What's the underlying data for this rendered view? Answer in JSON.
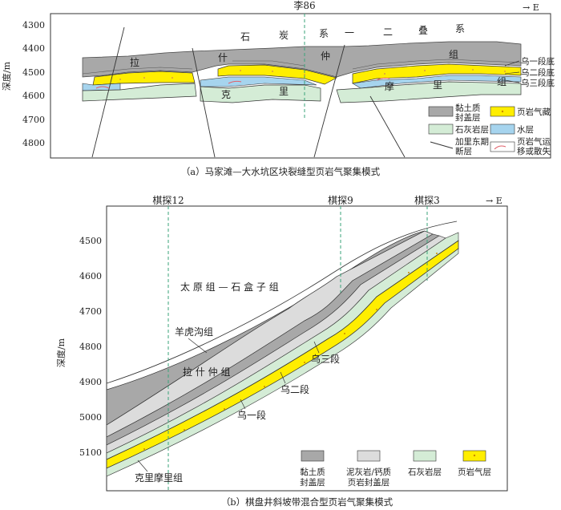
{
  "panel_a": {
    "east_label": "→ E",
    "well": "李86",
    "depth_label": "深度/m",
    "depth_ticks": [
      "4300",
      "4400",
      "4500",
      "4600",
      "4700",
      "4800"
    ],
    "formation_top": [
      "石",
      "炭",
      "系",
      "一",
      "二",
      "叠",
      "系"
    ],
    "formation_lst": [
      "拉",
      "什",
      "仲",
      "组"
    ],
    "formation_kml": [
      "克",
      "里",
      "摩",
      "里",
      "组"
    ],
    "callouts": [
      "乌一段底",
      "乌二段底",
      "乌三段底"
    ],
    "legend": {
      "clay_l1": "黏土质",
      "clay_l2": "封盖层",
      "shale_gas": "页岩气藏",
      "limestone": "石灰岩层",
      "water": "水层",
      "fault_l1": "加里东期",
      "fault_l2": "断层",
      "migr_l1": "页岩气运",
      "migr_l2": "移或散失"
    },
    "caption": "（a）马家滩—大水坑区块裂缝型页岩气聚集模式"
  },
  "panel_b": {
    "east_label": "→ E",
    "wells": [
      "棋探12",
      "棋探9",
      "棋探3"
    ],
    "depth_label": "深度/m",
    "depth_ticks": [
      "4500",
      "4600",
      "4700",
      "4800",
      "4900",
      "5000",
      "5100"
    ],
    "formation_taiyuan": "太 原 组 — 石 盒 子 组",
    "formation_yanghugou": "羊虎沟组",
    "formation_lashizhong": "拉 什 仲 组",
    "member_3": "乌三段",
    "member_2": "乌二段",
    "member_1": "乌一段",
    "formation_kelimoli": "克里摩里组",
    "legend": {
      "clay_l1": "黏土质",
      "clay_l2": "封盖层",
      "marl_l1": "泥灰岩/钙质",
      "marl_l2": "页岩封盖层",
      "limestone": "石灰岩层",
      "shale_gas": "页岩气层"
    },
    "caption": "（b）棋盘井斜坡带混合型页岩气聚集模式"
  },
  "colors": {
    "clay": "#a8a8a8",
    "marl": "#dcdcdc",
    "limestone": "#d4ecd6",
    "shale_gas": "#ffee00",
    "water": "#a6d4ee",
    "well_line": "#3aa37a",
    "migration": "#e0606a"
  }
}
